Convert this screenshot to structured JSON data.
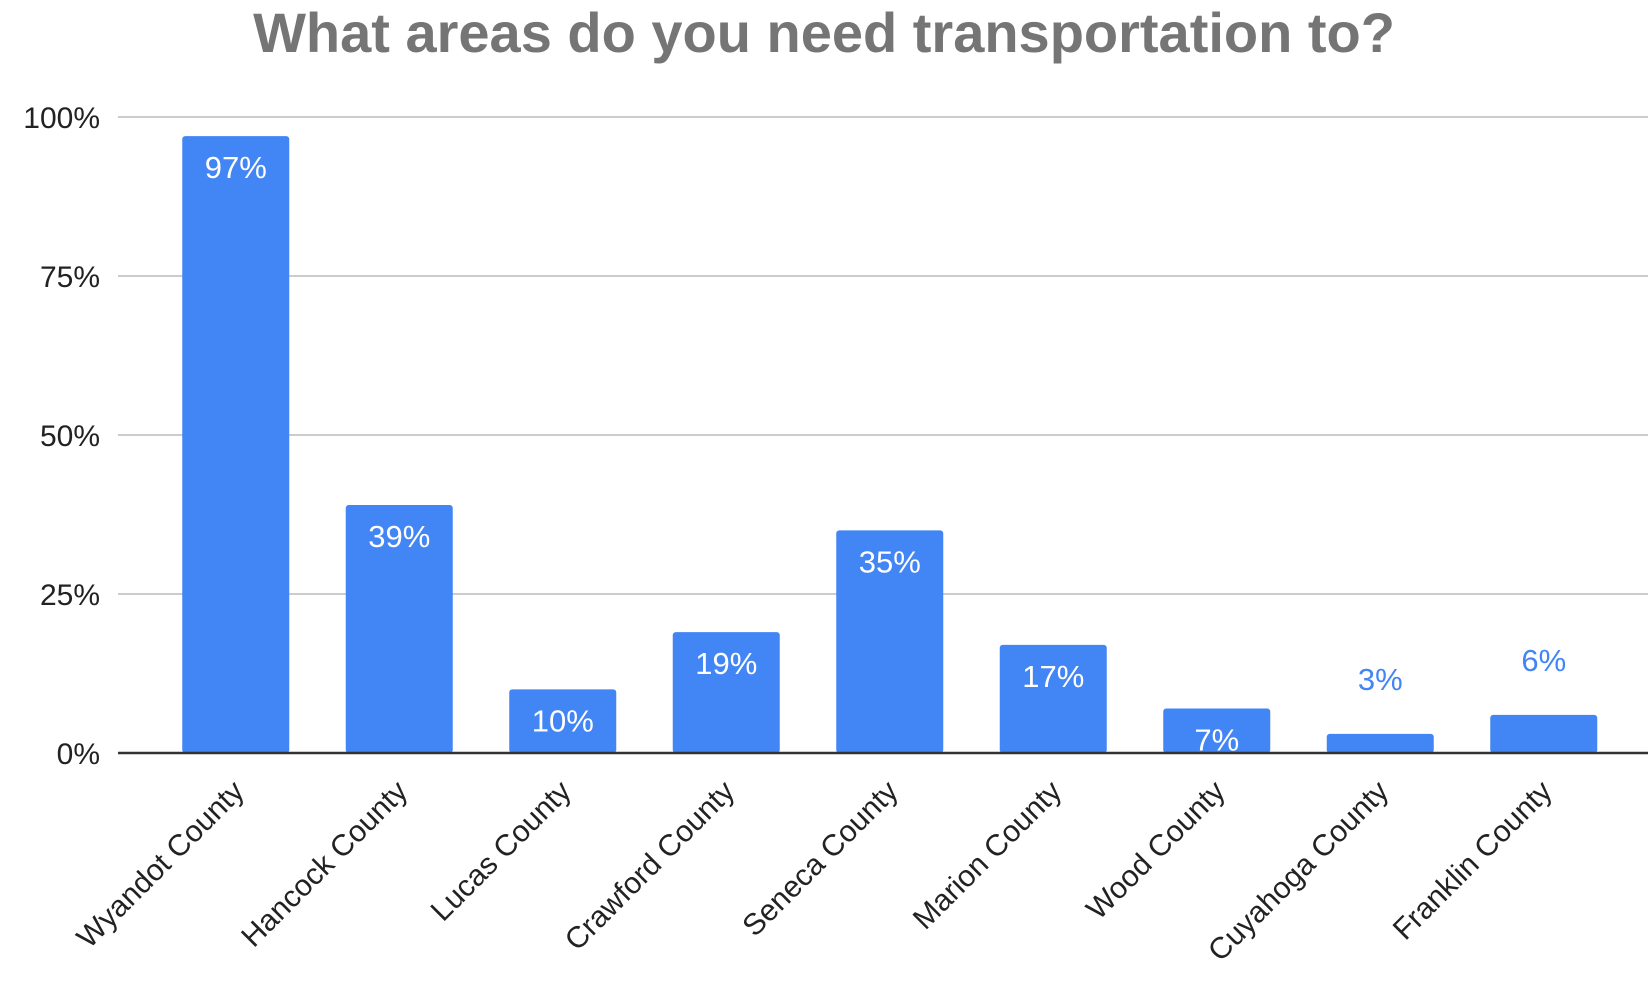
{
  "chart_data": {
    "type": "bar",
    "title": "What areas do you need transportation to?",
    "xlabel": "",
    "ylabel": "",
    "categories": [
      "Wyandot County",
      "Hancock County",
      "Lucas County",
      "Crawford County",
      "Seneca County",
      "Marion County",
      "Wood County",
      "Cuyahoga County",
      "Franklin County"
    ],
    "values": [
      97,
      39,
      10,
      19,
      35,
      17,
      7,
      3,
      6
    ],
    "data_labels": [
      "97%",
      "39%",
      "10%",
      "19%",
      "35%",
      "17%",
      "7%",
      "3%",
      "6%"
    ],
    "ylim": [
      0,
      100
    ],
    "yticks": [
      0,
      25,
      50,
      75,
      100
    ],
    "ytick_labels": [
      "0%",
      "25%",
      "50%",
      "75%",
      "100%"
    ],
    "grid": true,
    "legend": "none",
    "colors": {
      "bar": "#4285f4",
      "label_inside": "#ffffff",
      "label_outside": "#4285f4",
      "grid": "#cccccc",
      "axis": "#333333",
      "title": "#757575"
    }
  }
}
